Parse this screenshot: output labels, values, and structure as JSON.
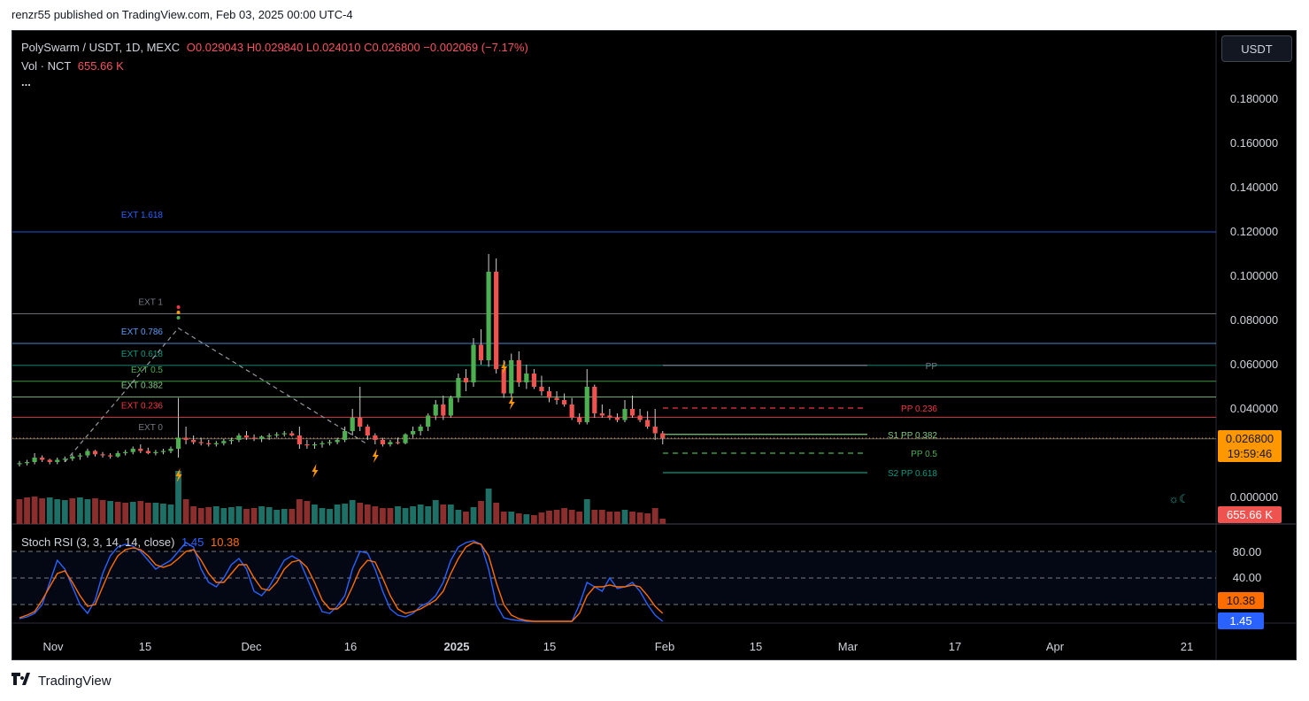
{
  "caption": "renzr55 published on TradingView.com, Feb 03, 2025 00:00 UTC-4",
  "footer": {
    "brand": "TradingView",
    "logo": "tradingview-logo"
  },
  "legend": {
    "symbol": "PolySwarm / USDT, 1D, MEXC",
    "open": "O0.029043",
    "high": "H0.029840",
    "low": "L0.024010",
    "close": "C0.026800",
    "change": "−0.002069 (−7.17%)",
    "vol_label": "Vol · NCT",
    "vol_value": "655.66 K",
    "more": "..."
  },
  "currency_button": "USDT",
  "colors": {
    "up": "#26a69a",
    "up_body": "#4caf50",
    "down": "#ef5350",
    "background": "#000000",
    "axis_text": "#d1d4dc"
  },
  "chart_data": {
    "type": "candlestick",
    "price_axis": {
      "ticks": [
        "0.180000",
        "0.160000",
        "0.140000",
        "0.120000",
        "0.100000",
        "0.080000",
        "0.060000",
        "0.040000",
        "0.000000"
      ],
      "range": [
        0,
        0.2
      ]
    },
    "time_axis": [
      "Nov",
      "15",
      "Dec",
      "16",
      "2025",
      "15",
      "Feb",
      "15",
      "Mar",
      "17",
      "Apr",
      "21"
    ],
    "last_price": {
      "value": "0.026800",
      "countdown": "19:59:46"
    },
    "volume_badge": "655.66 K",
    "candles": [
      [
        0.015,
        0.0165,
        0.014,
        0.0155
      ],
      [
        0.0155,
        0.017,
        0.0145,
        0.016
      ],
      [
        0.016,
        0.02,
        0.015,
        0.018
      ],
      [
        0.018,
        0.019,
        0.016,
        0.017
      ],
      [
        0.017,
        0.0175,
        0.015,
        0.016
      ],
      [
        0.016,
        0.018,
        0.015,
        0.017
      ],
      [
        0.017,
        0.0185,
        0.016,
        0.0175
      ],
      [
        0.0175,
        0.0195,
        0.0165,
        0.0185
      ],
      [
        0.0185,
        0.02,
        0.017,
        0.019
      ],
      [
        0.019,
        0.022,
        0.018,
        0.021
      ],
      [
        0.021,
        0.0215,
        0.0185,
        0.0195
      ],
      [
        0.0195,
        0.0205,
        0.018,
        0.019
      ],
      [
        0.019,
        0.02,
        0.0175,
        0.0185
      ],
      [
        0.0185,
        0.021,
        0.018,
        0.02
      ],
      [
        0.02,
        0.0215,
        0.019,
        0.0205
      ],
      [
        0.0205,
        0.023,
        0.0195,
        0.022
      ],
      [
        0.022,
        0.024,
        0.02,
        0.021
      ],
      [
        0.021,
        0.0225,
        0.0195,
        0.02
      ],
      [
        0.02,
        0.0215,
        0.019,
        0.0205
      ],
      [
        0.0205,
        0.022,
        0.0195,
        0.021
      ],
      [
        0.021,
        0.023,
        0.02,
        0.022
      ],
      [
        0.022,
        0.045,
        0.018,
        0.027
      ],
      [
        0.027,
        0.032,
        0.024,
        0.026
      ],
      [
        0.026,
        0.028,
        0.024,
        0.025
      ],
      [
        0.025,
        0.027,
        0.0235,
        0.0245
      ],
      [
        0.0245,
        0.026,
        0.023,
        0.024
      ],
      [
        0.024,
        0.0255,
        0.023,
        0.0245
      ],
      [
        0.0245,
        0.0265,
        0.0235,
        0.0255
      ],
      [
        0.0255,
        0.027,
        0.024,
        0.026
      ],
      [
        0.026,
        0.029,
        0.025,
        0.028
      ],
      [
        0.028,
        0.03,
        0.026,
        0.027
      ],
      [
        0.027,
        0.0285,
        0.0255,
        0.0265
      ],
      [
        0.0265,
        0.028,
        0.025,
        0.0275
      ],
      [
        0.0275,
        0.029,
        0.026,
        0.028
      ],
      [
        0.028,
        0.0295,
        0.027,
        0.0285
      ],
      [
        0.0285,
        0.03,
        0.0275,
        0.029
      ],
      [
        0.029,
        0.03,
        0.0275,
        0.028
      ],
      [
        0.028,
        0.032,
        0.022,
        0.024
      ],
      [
        0.024,
        0.026,
        0.022,
        0.0235
      ],
      [
        0.0235,
        0.025,
        0.022,
        0.024
      ],
      [
        0.024,
        0.0255,
        0.0225,
        0.0245
      ],
      [
        0.0245,
        0.026,
        0.0235,
        0.025
      ],
      [
        0.025,
        0.027,
        0.024,
        0.026
      ],
      [
        0.026,
        0.032,
        0.025,
        0.03
      ],
      [
        0.03,
        0.04,
        0.028,
        0.036
      ],
      [
        0.036,
        0.05,
        0.03,
        0.032
      ],
      [
        0.032,
        0.033,
        0.026,
        0.028
      ],
      [
        0.028,
        0.029,
        0.024,
        0.026
      ],
      [
        0.026,
        0.027,
        0.023,
        0.024
      ],
      [
        0.024,
        0.026,
        0.023,
        0.025
      ],
      [
        0.025,
        0.027,
        0.024,
        0.0245
      ],
      [
        0.0245,
        0.029,
        0.024,
        0.0285
      ],
      [
        0.0285,
        0.032,
        0.027,
        0.03
      ],
      [
        0.03,
        0.033,
        0.028,
        0.032
      ],
      [
        0.032,
        0.038,
        0.03,
        0.037
      ],
      [
        0.037,
        0.044,
        0.035,
        0.042
      ],
      [
        0.042,
        0.046,
        0.035,
        0.037
      ],
      [
        0.037,
        0.046,
        0.036,
        0.045
      ],
      [
        0.045,
        0.056,
        0.043,
        0.054
      ],
      [
        0.054,
        0.058,
        0.048,
        0.052
      ],
      [
        0.052,
        0.072,
        0.05,
        0.069
      ],
      [
        0.069,
        0.076,
        0.06,
        0.062
      ],
      [
        0.062,
        0.11,
        0.059,
        0.102
      ],
      [
        0.102,
        0.108,
        0.056,
        0.058
      ],
      [
        0.058,
        0.062,
        0.045,
        0.047
      ],
      [
        0.047,
        0.065,
        0.045,
        0.062
      ],
      [
        0.062,
        0.066,
        0.05,
        0.052
      ],
      [
        0.052,
        0.06,
        0.049,
        0.056
      ],
      [
        0.056,
        0.058,
        0.049,
        0.05
      ],
      [
        0.05,
        0.055,
        0.046,
        0.048
      ],
      [
        0.048,
        0.05,
        0.043,
        0.045
      ],
      [
        0.045,
        0.048,
        0.042,
        0.044
      ],
      [
        0.044,
        0.047,
        0.041,
        0.042
      ],
      [
        0.042,
        0.045,
        0.035,
        0.036
      ],
      [
        0.036,
        0.038,
        0.033,
        0.034
      ],
      [
        0.034,
        0.058,
        0.033,
        0.05
      ],
      [
        0.05,
        0.051,
        0.036,
        0.038
      ],
      [
        0.038,
        0.042,
        0.036,
        0.037
      ],
      [
        0.037,
        0.04,
        0.035,
        0.036
      ],
      [
        0.036,
        0.038,
        0.034,
        0.035
      ],
      [
        0.035,
        0.044,
        0.034,
        0.04
      ],
      [
        0.04,
        0.046,
        0.036,
        0.037
      ],
      [
        0.037,
        0.04,
        0.034,
        0.035
      ],
      [
        0.035,
        0.039,
        0.031,
        0.032
      ],
      [
        0.032,
        0.04,
        0.026,
        0.029
      ],
      [
        0.029,
        0.03,
        0.024,
        0.0268
      ]
    ],
    "volume": [
      [
        28,
        "down"
      ],
      [
        30,
        "down"
      ],
      [
        31,
        "down"
      ],
      [
        29,
        "down"
      ],
      [
        30,
        "up"
      ],
      [
        28,
        "up"
      ],
      [
        27,
        "up"
      ],
      [
        29,
        "down"
      ],
      [
        30,
        "up"
      ],
      [
        28,
        "up"
      ],
      [
        29,
        "down"
      ],
      [
        27,
        "down"
      ],
      [
        26,
        "up"
      ],
      [
        25,
        "down"
      ],
      [
        24,
        "down"
      ],
      [
        25,
        "up"
      ],
      [
        26,
        "down"
      ],
      [
        24,
        "down"
      ],
      [
        24,
        "up"
      ],
      [
        23,
        "up"
      ],
      [
        22,
        "up"
      ],
      [
        60,
        "up"
      ],
      [
        28,
        "down"
      ],
      [
        20,
        "down"
      ],
      [
        18,
        "down"
      ],
      [
        19,
        "down"
      ],
      [
        20,
        "up"
      ],
      [
        18,
        "up"
      ],
      [
        19,
        "up"
      ],
      [
        20,
        "up"
      ],
      [
        17,
        "down"
      ],
      [
        18,
        "down"
      ],
      [
        20,
        "up"
      ],
      [
        19,
        "up"
      ],
      [
        16,
        "up"
      ],
      [
        17,
        "up"
      ],
      [
        17,
        "down"
      ],
      [
        28,
        "down"
      ],
      [
        26,
        "down"
      ],
      [
        22,
        "up"
      ],
      [
        18,
        "up"
      ],
      [
        17,
        "up"
      ],
      [
        22,
        "up"
      ],
      [
        23,
        "up"
      ],
      [
        27,
        "up"
      ],
      [
        24,
        "down"
      ],
      [
        22,
        "down"
      ],
      [
        20,
        "down"
      ],
      [
        18,
        "down"
      ],
      [
        18,
        "down"
      ],
      [
        20,
        "up"
      ],
      [
        18,
        "up"
      ],
      [
        20,
        "up"
      ],
      [
        22,
        "up"
      ],
      [
        20,
        "up"
      ],
      [
        27,
        "up"
      ],
      [
        22,
        "down"
      ],
      [
        22,
        "up"
      ],
      [
        16,
        "up"
      ],
      [
        14,
        "down"
      ],
      [
        19,
        "up"
      ],
      [
        26,
        "down"
      ],
      [
        40,
        "up"
      ],
      [
        24,
        "down"
      ],
      [
        14,
        "down"
      ],
      [
        14,
        "up"
      ],
      [
        12,
        "down"
      ],
      [
        11,
        "up"
      ],
      [
        10,
        "down"
      ],
      [
        13,
        "down"
      ],
      [
        15,
        "down"
      ],
      [
        16,
        "down"
      ],
      [
        18,
        "down"
      ],
      [
        16,
        "down"
      ],
      [
        14,
        "down"
      ],
      [
        28,
        "up"
      ],
      [
        16,
        "down"
      ],
      [
        16,
        "down"
      ],
      [
        14,
        "down"
      ],
      [
        14,
        "down"
      ],
      [
        16,
        "up"
      ],
      [
        14,
        "down"
      ],
      [
        13,
        "down"
      ],
      [
        12,
        "down"
      ],
      [
        18,
        "down"
      ],
      [
        6,
        "down"
      ]
    ],
    "fib_levels": [
      {
        "label": "EXT 1.618",
        "value": 0.12,
        "color": "#2962ff"
      },
      {
        "label": "EXT 1",
        "value": 0.083,
        "color": "#787b86"
      },
      {
        "label": "EXT 0.786",
        "value": 0.0696,
        "color": "#5b9cf6"
      },
      {
        "label": "EXT 0.618",
        "value": 0.0597,
        "color": "#089981"
      },
      {
        "label": "EXT 0.5",
        "value": 0.0525,
        "color": "#4caf50"
      },
      {
        "label": "EXT 0.382",
        "value": 0.0454,
        "color": "#81c784"
      },
      {
        "label": "EXT 0.236",
        "value": 0.0362,
        "color": "#f23645"
      },
      {
        "label": "EXT 0",
        "value": 0.0265,
        "color": "#787b86"
      }
    ],
    "pivot_levels": [
      {
        "label": "PP",
        "value": 0.0597,
        "color": "#787b86",
        "dashed": false
      },
      {
        "label": "PP 0.236",
        "value": 0.0404,
        "color": "#f23645",
        "dashed": true
      },
      {
        "label": "S1 PP 0.382",
        "value": 0.0285,
        "color": "#81c784",
        "dashed": false
      },
      {
        "label": "PP 0.5",
        "value": 0.02,
        "color": "#4caf50",
        "dashed": true
      },
      {
        "label": "S2 PP 0.618",
        "value": 0.0112,
        "color": "#089981",
        "dashed": false
      }
    ],
    "stoch_rsi": {
      "label": "Stoch RSI (3, 3, 14, 14, close)",
      "k_value": "1.45",
      "d_value": "10.38",
      "k_color": "#2962ff",
      "d_color": "#ff6d00",
      "levels": [
        "80.00",
        "40.00"
      ],
      "level_values": [
        80,
        50,
        20
      ],
      "k": [
        4,
        6,
        10,
        20,
        45,
        70,
        60,
        40,
        20,
        10,
        25,
        55,
        75,
        85,
        88,
        86,
        80,
        70,
        60,
        65,
        70,
        80,
        90,
        85,
        60,
        45,
        40,
        50,
        65,
        72,
        60,
        35,
        30,
        40,
        55,
        70,
        75,
        70,
        50,
        30,
        12,
        10,
        18,
        30,
        60,
        80,
        78,
        60,
        35,
        15,
        8,
        6,
        10,
        18,
        22,
        30,
        45,
        70,
        85,
        90,
        92,
        88,
        60,
        20,
        5,
        3,
        2,
        1,
        1,
        1,
        1,
        1,
        1,
        1,
        20,
        45,
        40,
        35,
        50,
        38,
        40,
        45,
        35,
        20,
        8,
        1
      ],
      "d": [
        5,
        8,
        12,
        25,
        40,
        55,
        58,
        45,
        30,
        18,
        20,
        40,
        60,
        75,
        82,
        84,
        82,
        75,
        65,
        62,
        65,
        72,
        80,
        82,
        70,
        55,
        45,
        45,
        55,
        65,
        65,
        50,
        38,
        36,
        45,
        60,
        68,
        70,
        62,
        45,
        25,
        15,
        15,
        22,
        40,
        60,
        70,
        68,
        50,
        30,
        15,
        10,
        12,
        15,
        20,
        25,
        35,
        55,
        72,
        85,
        90,
        88,
        75,
        45,
        20,
        8,
        4,
        2,
        1,
        1,
        1,
        1,
        1,
        1,
        10,
        30,
        40,
        40,
        42,
        40,
        40,
        42,
        40,
        30,
        18,
        10
      ]
    }
  }
}
